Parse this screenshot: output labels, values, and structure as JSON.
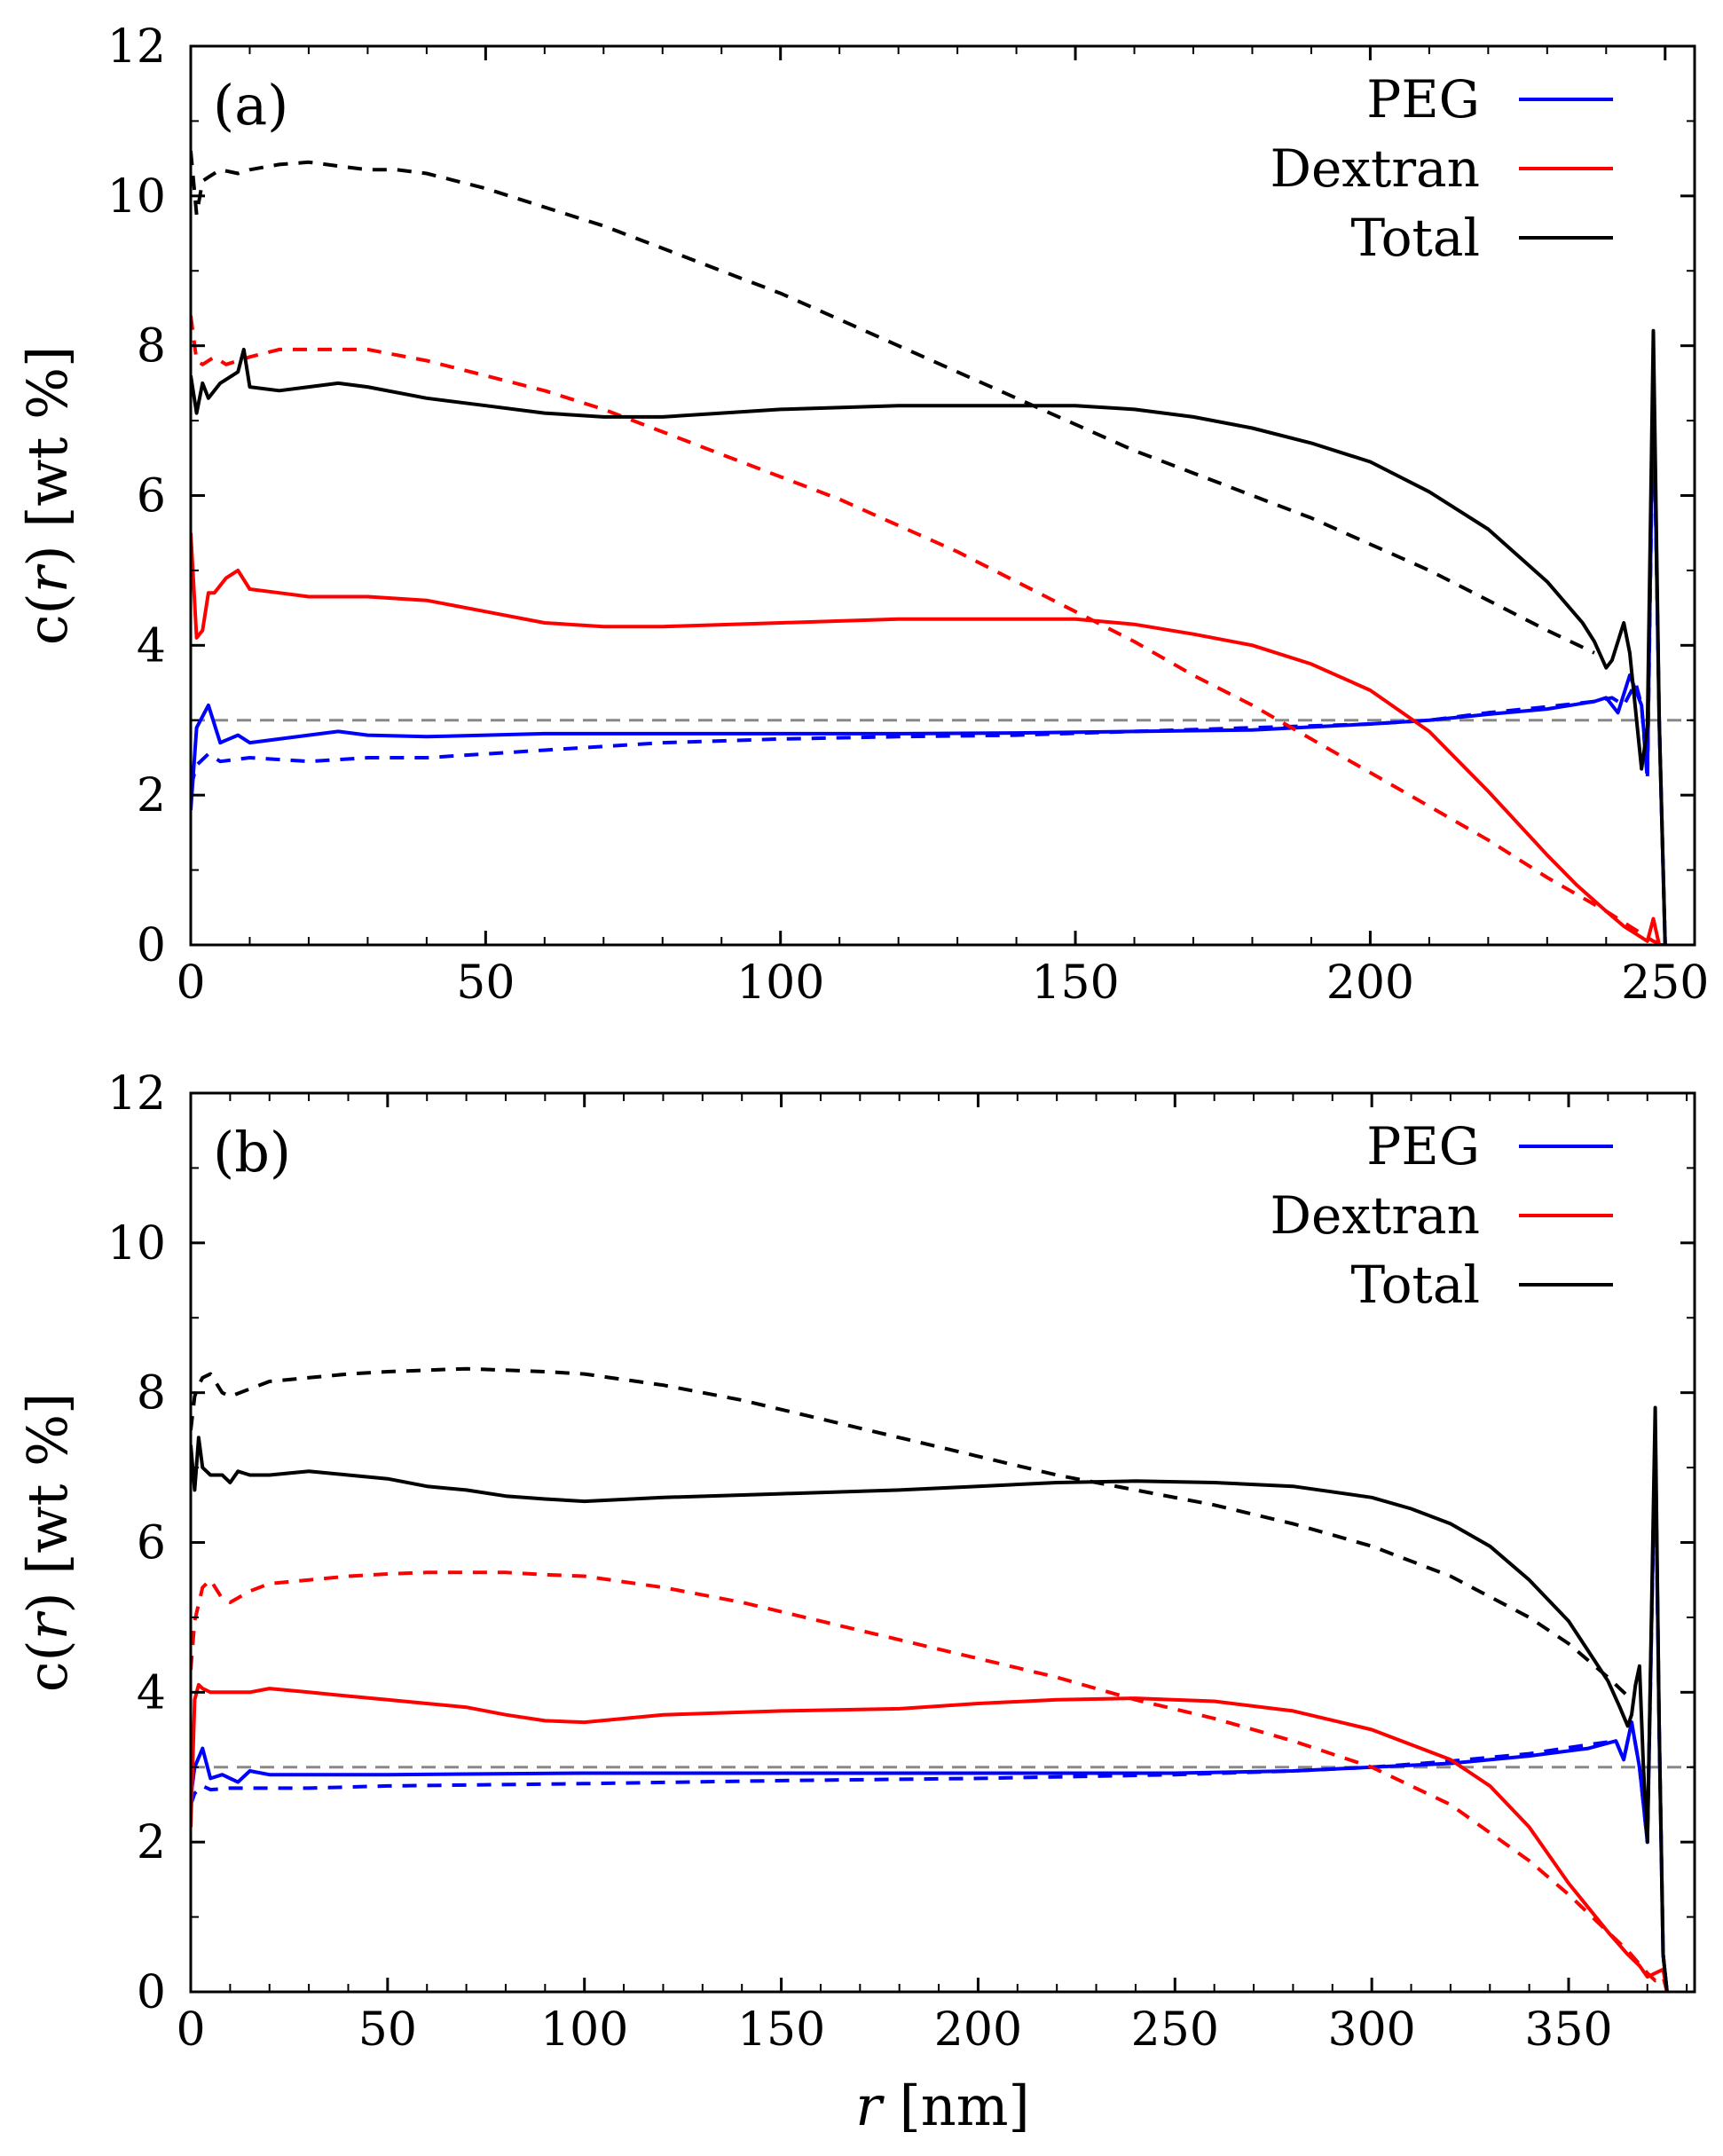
{
  "chart_data": [
    {
      "type": "line",
      "panel_label": "(a)",
      "xlabel": "",
      "ylabel_parts": [
        "c(",
        "r",
        ") [wt %]"
      ],
      "xlim": [
        0,
        255
      ],
      "ylim": [
        0,
        12
      ],
      "xticks": [
        0,
        50,
        100,
        150,
        200,
        250
      ],
      "yticks": [
        0,
        2,
        4,
        6,
        8,
        10,
        12
      ],
      "reference_line": {
        "y": 3,
        "color": "#888888",
        "style": "dashed"
      },
      "legend": {
        "position": "top-right",
        "entries": [
          {
            "label": "PEG",
            "color": "#0000ff"
          },
          {
            "label": "Dextran",
            "color": "#ff0000"
          },
          {
            "label": "Total",
            "color": "#000000"
          }
        ]
      },
      "series": [
        {
          "component": "PEG",
          "style": "solid",
          "color": "#0000ff",
          "x": [
            0,
            1,
            3,
            5,
            8,
            10,
            15,
            20,
            25,
            30,
            40,
            50,
            60,
            70,
            80,
            90,
            100,
            120,
            140,
            160,
            180,
            200,
            210,
            220,
            230,
            238,
            240,
            242,
            244,
            246,
            247,
            248,
            249,
            250
          ],
          "y": [
            1.8,
            2.9,
            3.2,
            2.7,
            2.8,
            2.7,
            2.75,
            2.8,
            2.85,
            2.8,
            2.78,
            2.8,
            2.82,
            2.82,
            2.82,
            2.82,
            2.82,
            2.82,
            2.83,
            2.85,
            2.87,
            2.95,
            3.0,
            3.08,
            3.15,
            3.25,
            3.3,
            3.1,
            3.6,
            3.2,
            2.3,
            7.6,
            3.0,
            0
          ]
        },
        {
          "component": "PEG",
          "style": "dashed",
          "color": "#0000ff",
          "x": [
            0,
            1,
            3,
            5,
            10,
            20,
            30,
            40,
            50,
            60,
            70,
            80,
            100,
            120,
            140,
            160,
            180,
            200,
            210,
            220,
            230,
            238,
            241,
            243,
            245,
            246,
            247,
            248,
            249,
            250
          ],
          "y": [
            2.1,
            2.4,
            2.55,
            2.45,
            2.5,
            2.45,
            2.5,
            2.5,
            2.55,
            2.6,
            2.65,
            2.7,
            2.75,
            2.78,
            2.8,
            2.85,
            2.9,
            2.95,
            3.0,
            3.1,
            3.18,
            3.25,
            3.3,
            3.2,
            3.5,
            3.2,
            2.2,
            7.5,
            3.0,
            0
          ]
        },
        {
          "component": "Dextran",
          "style": "solid",
          "color": "#ff0000",
          "x": [
            0,
            1,
            2,
            3,
            4,
            6,
            8,
            10,
            15,
            20,
            30,
            40,
            50,
            60,
            70,
            80,
            100,
            120,
            140,
            150,
            160,
            170,
            180,
            190,
            200,
            210,
            220,
            230,
            235,
            240,
            243,
            245,
            247,
            248,
            249,
            250
          ],
          "y": [
            5.5,
            4.1,
            4.2,
            4.7,
            4.7,
            4.9,
            5.0,
            4.75,
            4.7,
            4.65,
            4.65,
            4.6,
            4.45,
            4.3,
            4.25,
            4.25,
            4.3,
            4.35,
            4.35,
            4.35,
            4.28,
            4.15,
            4.0,
            3.75,
            3.4,
            2.85,
            2.05,
            1.2,
            0.8,
            0.45,
            0.25,
            0.15,
            0.05,
            0.35,
            0.0,
            0
          ]
        },
        {
          "component": "Dextran",
          "style": "dashed",
          "color": "#ff0000",
          "x": [
            0,
            1,
            2,
            4,
            6,
            10,
            15,
            20,
            30,
            40,
            50,
            60,
            70,
            80,
            90,
            100,
            110,
            120,
            130,
            140,
            150,
            160,
            170,
            180,
            190,
            200,
            210,
            220,
            230,
            240,
            244,
            246,
            248,
            250
          ],
          "y": [
            8.4,
            7.8,
            7.75,
            7.85,
            7.75,
            7.85,
            7.95,
            7.95,
            7.95,
            7.8,
            7.6,
            7.4,
            7.15,
            6.85,
            6.55,
            6.25,
            5.95,
            5.6,
            5.25,
            4.85,
            4.45,
            4.05,
            3.6,
            3.2,
            2.75,
            2.3,
            1.85,
            1.4,
            0.9,
            0.45,
            0.25,
            0.15,
            0.05,
            0
          ]
        },
        {
          "component": "Total",
          "style": "solid",
          "color": "#000000",
          "x": [
            0,
            1,
            2,
            3,
            5,
            8,
            9,
            10,
            15,
            20,
            25,
            30,
            40,
            50,
            60,
            70,
            80,
            90,
            100,
            120,
            140,
            150,
            160,
            170,
            180,
            190,
            200,
            210,
            220,
            230,
            236,
            238,
            240,
            241,
            243,
            244,
            246,
            247,
            248,
            249,
            250
          ],
          "y": [
            7.6,
            7.1,
            7.5,
            7.3,
            7.5,
            7.65,
            7.95,
            7.45,
            7.4,
            7.45,
            7.5,
            7.45,
            7.3,
            7.2,
            7.1,
            7.05,
            7.05,
            7.1,
            7.15,
            7.2,
            7.2,
            7.2,
            7.15,
            7.05,
            6.9,
            6.7,
            6.45,
            6.05,
            5.55,
            4.85,
            4.3,
            4.05,
            3.7,
            3.8,
            4.3,
            3.9,
            2.35,
            2.9,
            8.2,
            3.0,
            0
          ]
        },
        {
          "component": "Total",
          "style": "dashed",
          "color": "#000000",
          "x": [
            0,
            1,
            2,
            3,
            5,
            8,
            10,
            15,
            20,
            25,
            30,
            35,
            40,
            50,
            60,
            70,
            80,
            90,
            100,
            110,
            120,
            130,
            140,
            150,
            160,
            170,
            180,
            190,
            200,
            210,
            220,
            230,
            238
          ],
          "y": [
            10.6,
            9.75,
            10.2,
            10.25,
            10.35,
            10.3,
            10.35,
            10.42,
            10.45,
            10.4,
            10.35,
            10.35,
            10.3,
            10.1,
            9.85,
            9.6,
            9.3,
            9.0,
            8.7,
            8.35,
            8.0,
            7.65,
            7.3,
            6.95,
            6.6,
            6.3,
            6.0,
            5.7,
            5.35,
            5.0,
            4.6,
            4.2,
            3.9
          ]
        }
      ]
    },
    {
      "type": "line",
      "panel_label": "(b)",
      "xlabel_parts": [
        "r",
        " [nm]"
      ],
      "ylabel_parts": [
        "c(",
        "r",
        ") [wt %]"
      ],
      "xlim": [
        0,
        382
      ],
      "ylim": [
        0,
        12
      ],
      "xticks": [
        0,
        50,
        100,
        150,
        200,
        250,
        300,
        350
      ],
      "yticks": [
        0,
        2,
        4,
        6,
        8,
        10,
        12
      ],
      "reference_line": {
        "y": 3,
        "color": "#888888",
        "style": "dashed"
      },
      "legend": {
        "position": "top-right",
        "entries": [
          {
            "label": "PEG",
            "color": "#0000ff"
          },
          {
            "label": "Dextran",
            "color": "#ff0000"
          },
          {
            "label": "Total",
            "color": "#000000"
          }
        ]
      },
      "series": [
        {
          "component": "PEG",
          "style": "solid",
          "color": "#0000ff",
          "x": [
            0,
            1,
            3,
            5,
            8,
            12,
            15,
            20,
            30,
            50,
            100,
            150,
            200,
            250,
            280,
            300,
            320,
            340,
            355,
            362,
            364,
            366,
            368,
            370,
            372,
            373,
            374,
            375
          ],
          "y": [
            2.6,
            3.0,
            3.25,
            2.85,
            2.9,
            2.8,
            2.95,
            2.9,
            2.9,
            2.9,
            2.92,
            2.92,
            2.92,
            2.92,
            2.95,
            3.0,
            3.05,
            3.15,
            3.25,
            3.35,
            3.1,
            3.6,
            3.0,
            2.0,
            7.5,
            3.5,
            0.5,
            0
          ]
        },
        {
          "component": "PEG",
          "style": "dashed",
          "color": "#0000ff",
          "x": [
            0,
            1,
            3,
            5,
            10,
            20,
            30,
            50,
            100,
            150,
            200,
            250,
            280,
            300,
            320,
            340,
            355,
            362,
            364,
            366,
            368,
            370,
            372,
            373,
            374,
            375
          ],
          "y": [
            2.5,
            2.65,
            2.75,
            2.7,
            2.72,
            2.72,
            2.72,
            2.75,
            2.78,
            2.82,
            2.85,
            2.9,
            2.95,
            3.0,
            3.08,
            3.18,
            3.3,
            3.35,
            3.1,
            3.6,
            3.0,
            2.0,
            7.4,
            3.5,
            0.5,
            0
          ]
        },
        {
          "component": "Dextran",
          "style": "solid",
          "color": "#ff0000",
          "x": [
            0,
            1,
            2,
            3,
            5,
            10,
            15,
            20,
            30,
            40,
            50,
            60,
            70,
            80,
            90,
            100,
            120,
            150,
            180,
            200,
            220,
            240,
            260,
            280,
            300,
            320,
            330,
            340,
            350,
            360,
            365,
            368,
            370,
            372,
            374,
            375
          ],
          "y": [
            2.2,
            3.9,
            4.1,
            4.05,
            4.0,
            4.0,
            4.0,
            4.05,
            4.0,
            3.95,
            3.9,
            3.85,
            3.8,
            3.7,
            3.62,
            3.6,
            3.7,
            3.75,
            3.78,
            3.85,
            3.9,
            3.92,
            3.88,
            3.75,
            3.5,
            3.1,
            2.75,
            2.2,
            1.45,
            0.8,
            0.5,
            0.35,
            0.2,
            0.25,
            0.3,
            0
          ]
        },
        {
          "component": "Dextran",
          "style": "dashed",
          "color": "#ff0000",
          "x": [
            0,
            1,
            3,
            5,
            8,
            10,
            15,
            20,
            30,
            40,
            50,
            60,
            70,
            80,
            90,
            100,
            120,
            140,
            160,
            180,
            200,
            220,
            240,
            260,
            280,
            300,
            320,
            340,
            350,
            360,
            365,
            370,
            372,
            374,
            375
          ],
          "y": [
            4.3,
            4.95,
            5.4,
            5.5,
            5.25,
            5.2,
            5.35,
            5.45,
            5.5,
            5.55,
            5.58,
            5.6,
            5.6,
            5.6,
            5.57,
            5.55,
            5.4,
            5.2,
            4.95,
            4.7,
            4.45,
            4.2,
            3.9,
            3.65,
            3.35,
            3.0,
            2.5,
            1.75,
            1.3,
            0.8,
            0.55,
            0.25,
            0.15,
            0.2,
            0
          ]
        },
        {
          "component": "Total",
          "style": "solid",
          "color": "#000000",
          "x": [
            0,
            1,
            2,
            3,
            5,
            8,
            10,
            12,
            15,
            20,
            30,
            40,
            50,
            60,
            70,
            80,
            90,
            100,
            120,
            150,
            180,
            200,
            220,
            240,
            260,
            280,
            300,
            310,
            320,
            330,
            340,
            350,
            360,
            363,
            365,
            366,
            367,
            368,
            369,
            370,
            372,
            373,
            374,
            375
          ],
          "y": [
            7.3,
            6.7,
            7.4,
            7.0,
            6.9,
            6.9,
            6.8,
            6.95,
            6.9,
            6.9,
            6.95,
            6.9,
            6.85,
            6.75,
            6.7,
            6.62,
            6.58,
            6.55,
            6.6,
            6.65,
            6.7,
            6.75,
            6.8,
            6.82,
            6.8,
            6.75,
            6.6,
            6.45,
            6.25,
            5.95,
            5.5,
            4.95,
            4.15,
            3.8,
            3.55,
            3.7,
            4.1,
            4.35,
            3.0,
            2.0,
            7.8,
            3.5,
            0.5,
            0
          ]
        },
        {
          "component": "Total",
          "style": "dashed",
          "color": "#000000",
          "x": [
            0,
            1,
            2,
            3,
            5,
            8,
            10,
            15,
            20,
            30,
            40,
            50,
            60,
            70,
            80,
            90,
            100,
            120,
            140,
            160,
            180,
            200,
            220,
            240,
            260,
            280,
            300,
            320,
            340,
            350,
            360,
            365
          ],
          "y": [
            7.5,
            7.95,
            8.1,
            8.2,
            8.25,
            8.0,
            7.95,
            8.05,
            8.15,
            8.2,
            8.25,
            8.28,
            8.3,
            8.32,
            8.3,
            8.28,
            8.25,
            8.1,
            7.9,
            7.65,
            7.4,
            7.15,
            6.9,
            6.7,
            6.5,
            6.25,
            5.95,
            5.55,
            5.0,
            4.65,
            4.2,
            3.95
          ]
        }
      ]
    }
  ]
}
